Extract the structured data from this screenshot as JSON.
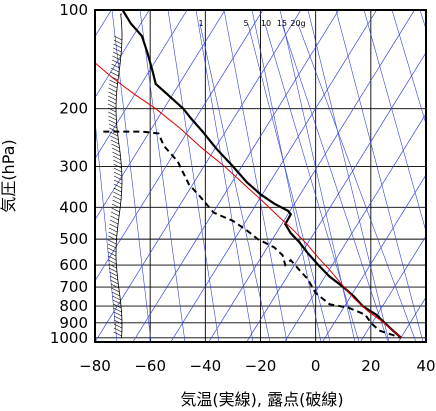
{
  "chart_data": {
    "type": "line",
    "xlabel": "気温(実線), 露点(破線)",
    "ylabel": "気圧(hPa)",
    "xlim": [
      -80,
      40
    ],
    "ylim": [
      1030,
      100
    ],
    "y_scale": "log",
    "grid": true,
    "x_ticks": [
      -80,
      -60,
      -40,
      -20,
      0,
      20,
      40
    ],
    "y_ticks": [
      100,
      200,
      300,
      400,
      500,
      600,
      700,
      800,
      900,
      1000
    ],
    "mixing_ratio_labels": [
      "1",
      "5",
      "10",
      "15",
      "20g"
    ],
    "series": [
      {
        "name": "気温",
        "style": "solid",
        "color": "#000000",
        "points": [
          [
            -70,
            100
          ],
          [
            -67,
            110
          ],
          [
            -63,
            120
          ],
          [
            -61,
            135
          ],
          [
            -59,
            155
          ],
          [
            -58,
            168
          ],
          [
            -54,
            180
          ],
          [
            -48,
            200
          ],
          [
            -45,
            215
          ],
          [
            -41,
            235
          ],
          [
            -36,
            265
          ],
          [
            -30,
            300
          ],
          [
            -25,
            335
          ],
          [
            -20,
            365
          ],
          [
            -15,
            390
          ],
          [
            -10,
            410
          ],
          [
            -9,
            420
          ],
          [
            -11,
            450
          ],
          [
            -9,
            480
          ],
          [
            -6,
            510
          ],
          [
            -3,
            550
          ],
          [
            1,
            600
          ],
          [
            5,
            650
          ],
          [
            10,
            700
          ],
          [
            14,
            750
          ],
          [
            17,
            800
          ],
          [
            22,
            850
          ],
          [
            25,
            900
          ],
          [
            28,
            950
          ],
          [
            31,
            1000
          ]
        ]
      },
      {
        "name": "露点",
        "style": "dashed",
        "color": "#000000",
        "points": [
          [
            -77,
            235
          ],
          [
            -63,
            235
          ],
          [
            -57,
            238
          ],
          [
            -55,
            260
          ],
          [
            -50,
            290
          ],
          [
            -46,
            340
          ],
          [
            -42,
            370
          ],
          [
            -37,
            415
          ],
          [
            -30,
            440
          ],
          [
            -25,
            470
          ],
          [
            -21,
            500
          ],
          [
            -15,
            530
          ],
          [
            -12,
            560
          ],
          [
            -11,
            600
          ],
          [
            -9,
            580
          ],
          [
            -6,
            620
          ],
          [
            -3,
            660
          ],
          [
            0,
            730
          ],
          [
            5,
            790
          ],
          [
            12,
            810
          ],
          [
            18,
            850
          ],
          [
            20,
            900
          ],
          [
            23,
            950
          ],
          [
            31,
            1000
          ]
        ]
      },
      {
        "name": "",
        "style": "thin",
        "color": "#e00000",
        "points": [
          [
            -80,
            145
          ],
          [
            -74,
            160
          ],
          [
            -66,
            180
          ],
          [
            -58,
            200
          ],
          [
            -49,
            230
          ],
          [
            -41,
            265
          ],
          [
            -33,
            300
          ],
          [
            -26,
            340
          ],
          [
            -19,
            385
          ],
          [
            -13,
            430
          ],
          [
            -8,
            470
          ],
          [
            -3,
            520
          ],
          [
            1,
            570
          ],
          [
            5,
            620
          ],
          [
            9,
            680
          ],
          [
            14,
            760
          ],
          [
            19,
            830
          ],
          [
            24,
            890
          ],
          [
            28,
            950
          ],
          [
            31,
            1000
          ]
        ]
      }
    ]
  }
}
